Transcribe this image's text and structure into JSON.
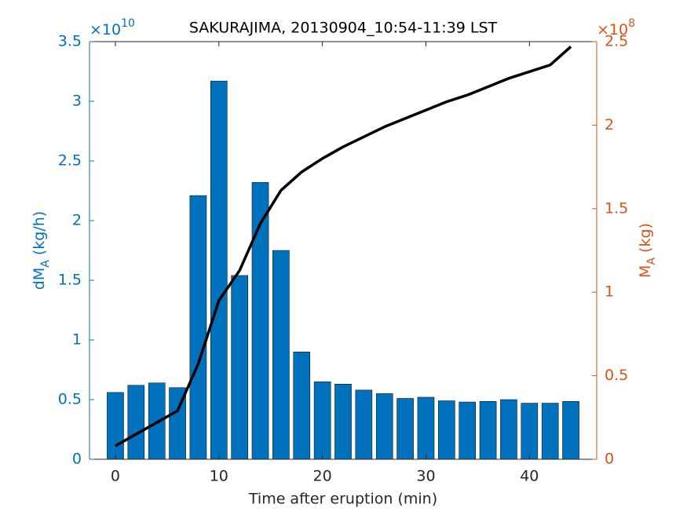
{
  "chart_data": {
    "type": "bar_line",
    "title": "SAKURAJIMA, 20130904_10:54-11:39 LST",
    "x_label": "Time after eruption (min)",
    "y_label": {
      "main": "dM",
      "sub": "A",
      "unit": "(kg/h)"
    },
    "y2_label": {
      "main": "M",
      "sub": "A",
      "unit": "(kg)"
    },
    "y_multiplier": {
      "base": "×10",
      "exp": "10"
    },
    "y2_multiplier": {
      "base": "×10",
      "exp": "8"
    },
    "x": [
      0,
      2,
      4,
      6,
      8,
      10,
      12,
      14,
      16,
      18,
      20,
      22,
      24,
      26,
      28,
      30,
      32,
      34,
      36,
      38,
      40,
      42,
      44
    ],
    "series": [
      {
        "type": "bar",
        "color": "#0072BD",
        "axis": "y",
        "values": [
          0.56,
          0.62,
          0.64,
          0.6,
          2.21,
          3.17,
          1.54,
          2.32,
          1.75,
          0.9,
          0.65,
          0.63,
          0.58,
          0.55,
          0.51,
          0.52,
          0.49,
          0.48,
          0.485,
          0.5,
          0.47,
          0.47,
          0.485
        ]
      },
      {
        "type": "line",
        "color": "#000000",
        "axis": "y2",
        "values": [
          0.08,
          0.15,
          0.22,
          0.29,
          0.57,
          0.95,
          1.13,
          1.41,
          1.61,
          1.72,
          1.8,
          1.87,
          1.93,
          1.99,
          2.04,
          2.09,
          2.14,
          2.18,
          2.23,
          2.28,
          2.32,
          2.36,
          2.47
        ]
      }
    ],
    "xlim": [
      -2.5,
      46.5
    ],
    "xticks": [
      0,
      10,
      20,
      30,
      40
    ],
    "ylim": [
      0,
      3.5
    ],
    "yticks": [
      0,
      0.5,
      1,
      1.5,
      2,
      2.5,
      3,
      3.5
    ],
    "y2lim": [
      0,
      2.5
    ],
    "y2ticks": [
      0,
      0.5,
      1,
      1.5,
      2,
      2.5
    ],
    "y_color": "#0072BD",
    "y2_color": "#D95319"
  }
}
